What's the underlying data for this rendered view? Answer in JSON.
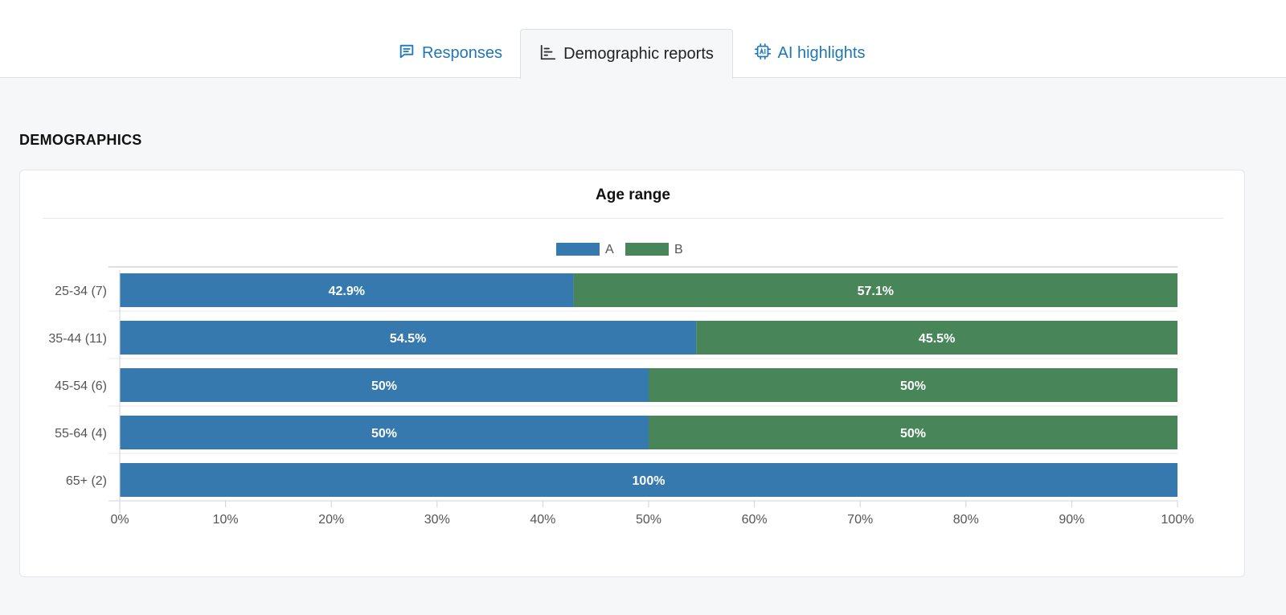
{
  "tabs": [
    {
      "label": "Responses",
      "icon": "message-square-icon",
      "active": false
    },
    {
      "label": "Demographic reports",
      "icon": "bar-chart-icon",
      "active": true
    },
    {
      "label": "AI highlights",
      "icon": "ai-chip-icon",
      "active": false
    }
  ],
  "section_title": "DEMOGRAPHICS",
  "colors": {
    "series_a": "#3579ae",
    "series_b": "#488559",
    "link": "#1f76b8"
  },
  "chart_data": {
    "type": "bar",
    "orientation": "horizontal",
    "stacked": true,
    "title": "Age range",
    "categories": [
      "25-34 (7)",
      "35-44 (11)",
      "45-54 (6)",
      "55-64 (4)",
      "65+ (2)"
    ],
    "series": [
      {
        "name": "A",
        "values": [
          42.9,
          54.5,
          50,
          50,
          100
        ],
        "labels": [
          "42.9%",
          "54.5%",
          "50%",
          "50%",
          "100%"
        ]
      },
      {
        "name": "B",
        "values": [
          57.1,
          45.5,
          50,
          50,
          0
        ],
        "labels": [
          "57.1%",
          "45.5%",
          "50%",
          "50%",
          ""
        ]
      }
    ],
    "xlim": [
      0,
      100
    ],
    "xticks": [
      "0%",
      "10%",
      "20%",
      "30%",
      "40%",
      "50%",
      "60%",
      "70%",
      "80%",
      "90%",
      "100%"
    ],
    "legend_position": "top-center",
    "grid": false
  }
}
